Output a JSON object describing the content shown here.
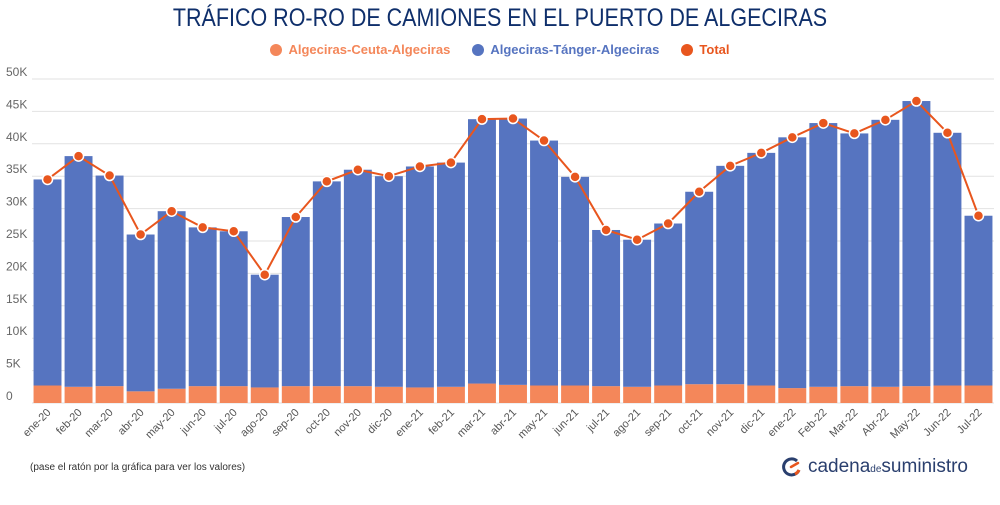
{
  "chart_data": {
    "type": "bar",
    "stacked": true,
    "title": "TRÁFICO RO-RO DE CAMIONES EN EL PUERTO DE ALGECIRAS",
    "xlabel": "",
    "ylabel": "",
    "ylim": [
      0,
      50000
    ],
    "yticks": [
      {
        "value": 0,
        "label": "0"
      },
      {
        "value": 5000,
        "label": "5K"
      },
      {
        "value": 10000,
        "label": "10K"
      },
      {
        "value": 15000,
        "label": "15K"
      },
      {
        "value": 20000,
        "label": "20K"
      },
      {
        "value": 25000,
        "label": "25K"
      },
      {
        "value": 30000,
        "label": "30K"
      },
      {
        "value": 35000,
        "label": "35K"
      },
      {
        "value": 40000,
        "label": "40K"
      },
      {
        "value": 45000,
        "label": "45K"
      },
      {
        "value": 50000,
        "label": "50K"
      }
    ],
    "grid": true,
    "legend_position": "top-center",
    "categories": [
      "ene-20",
      "feb-20",
      "mar-20",
      "abr-20",
      "may-20",
      "jun-20",
      "jul-20",
      "ago-20",
      "sep-20",
      "oct-20",
      "nov-20",
      "dic-20",
      "ene-21",
      "feb-21",
      "mar-21",
      "abr-21",
      "may-21",
      "jun-21",
      "jul-21",
      "ago-21",
      "sep-21",
      "oct-21",
      "nov-21",
      "dic-21",
      "ene-22",
      "Feb-22",
      "Mar-22",
      "Abr-22",
      "May-22",
      "Jun-22",
      "Jul-22"
    ],
    "series": [
      {
        "name": "Algeciras-Ceuta-Algeciras",
        "kind": "bar",
        "color": "#f4875a",
        "values": [
          2700,
          2500,
          2600,
          1800,
          2200,
          2600,
          2600,
          2400,
          2600,
          2600,
          2600,
          2500,
          2400,
          2500,
          3000,
          2800,
          2700,
          2700,
          2600,
          2500,
          2700,
          2900,
          2900,
          2700,
          2300,
          2500,
          2600,
          2500,
          2600,
          2700,
          2700
        ]
      },
      {
        "name": "Algeciras-Tánger-Algeciras",
        "kind": "bar",
        "color": "#5674c0",
        "values": [
          31800,
          35600,
          32500,
          24200,
          27400,
          24500,
          23900,
          17400,
          26100,
          31600,
          33400,
          32500,
          34100,
          34600,
          40800,
          41100,
          37800,
          32200,
          24100,
          22700,
          25000,
          29700,
          33700,
          35900,
          38700,
          40700,
          39000,
          41200,
          44000,
          39000,
          26200
        ]
      },
      {
        "name": "Total",
        "kind": "line",
        "color": "#e8561e",
        "values": [
          34500,
          38100,
          35100,
          26000,
          29600,
          27100,
          26500,
          19800,
          28700,
          34200,
          36000,
          35000,
          36500,
          37100,
          43800,
          43900,
          40500,
          34900,
          26700,
          25200,
          27700,
          32600,
          36600,
          38600,
          41000,
          43200,
          41600,
          43700,
          46600,
          41700,
          28900
        ]
      }
    ]
  },
  "note": "(pase el ratón por la gráfica para ver los valores)",
  "brand": {
    "part1": "cadena",
    "part2": "de",
    "part3": "suministro"
  }
}
